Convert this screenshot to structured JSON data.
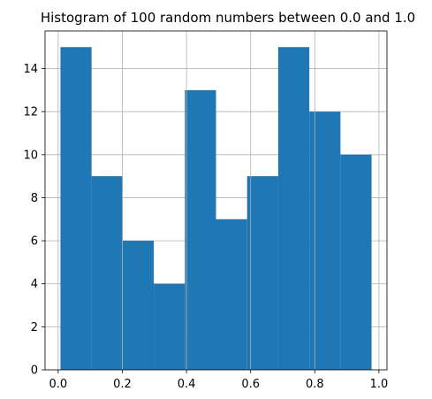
{
  "chart_data": {
    "type": "bar",
    "title": "Histogram of 100 random numbers between 0.0 and 1.0",
    "xlabel": "",
    "ylabel": "",
    "bin_edges": [
      0.007,
      0.104,
      0.201,
      0.298,
      0.395,
      0.492,
      0.589,
      0.686,
      0.783,
      0.88,
      0.977
    ],
    "values": [
      15,
      9,
      6,
      4,
      13,
      7,
      9,
      15,
      12,
      10
    ],
    "xlim": [
      -0.041,
      1.025
    ],
    "ylim": [
      0,
      15.75
    ],
    "xticks": [
      0.0,
      0.2,
      0.4,
      0.6,
      0.8,
      1.0
    ],
    "xtick_labels": [
      "0.0",
      "0.2",
      "0.4",
      "0.6",
      "0.8",
      "1.0"
    ],
    "yticks": [
      0,
      2,
      4,
      6,
      8,
      10,
      12,
      14
    ],
    "ytick_labels": [
      "0",
      "2",
      "4",
      "6",
      "8",
      "10",
      "12",
      "14"
    ],
    "grid": true,
    "bar_color": "#1f77b4",
    "grid_color": "#b0b0b0"
  }
}
